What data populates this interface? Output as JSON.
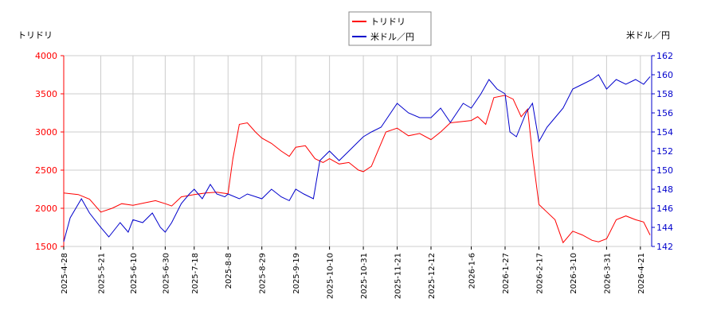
{
  "chart_data": {
    "type": "line",
    "left_axis_label": "トリドリ",
    "right_axis_label": "米ドル／円",
    "left_ylim": [
      1500,
      4000
    ],
    "right_ylim": [
      142,
      162
    ],
    "left_ticks": [
      1500,
      2000,
      2500,
      3000,
      3500,
      4000
    ],
    "right_ticks": [
      142,
      144,
      146,
      148,
      150,
      152,
      154,
      156,
      158,
      160,
      162
    ],
    "x_ticks": [
      "2025-4-28",
      "2025-5-21",
      "2025-6-10",
      "2025-6-30",
      "2025-7-18",
      "2025-8-8",
      "2025-8-29",
      "2025-9-19",
      "2025-10-10",
      "2025-10-31",
      "2025-11-21",
      "2025-12-12",
      "2026-1-6",
      "2026-1-27",
      "2026-2-17",
      "2026-3-10",
      "2026-3-31",
      "2026-4-21"
    ],
    "grid": true,
    "legend_position": "top-center",
    "series": [
      {
        "name": "トリドリ",
        "axis": "left",
        "color": "#ff0000",
        "values": [
          [
            "2025-4-28",
            2200
          ],
          [
            "2025-5-7",
            2180
          ],
          [
            "2025-5-14",
            2120
          ],
          [
            "2025-5-21",
            1950
          ],
          [
            "2025-5-28",
            2000
          ],
          [
            "2025-6-3",
            2060
          ],
          [
            "2025-6-10",
            2040
          ],
          [
            "2025-6-17",
            2070
          ],
          [
            "2025-6-24",
            2100
          ],
          [
            "2025-6-30",
            2060
          ],
          [
            "2025-7-4",
            2030
          ],
          [
            "2025-7-10",
            2150
          ],
          [
            "2025-7-18",
            2180
          ],
          [
            "2025-7-25",
            2200
          ],
          [
            "2025-8-1",
            2210
          ],
          [
            "2025-8-8",
            2190
          ],
          [
            "2025-8-11",
            2650
          ],
          [
            "2025-8-15",
            3100
          ],
          [
            "2025-8-20",
            3120
          ],
          [
            "2025-8-25",
            3000
          ],
          [
            "2025-8-29",
            2920
          ],
          [
            "2025-9-4",
            2850
          ],
          [
            "2025-9-10",
            2750
          ],
          [
            "2025-9-15",
            2680
          ],
          [
            "2025-9-19",
            2800
          ],
          [
            "2025-9-25",
            2820
          ],
          [
            "2025-10-1",
            2650
          ],
          [
            "2025-10-6",
            2600
          ],
          [
            "2025-10-10",
            2650
          ],
          [
            "2025-10-16",
            2580
          ],
          [
            "2025-10-22",
            2600
          ],
          [
            "2025-10-28",
            2500
          ],
          [
            "2025-10-31",
            2480
          ],
          [
            "2025-11-5",
            2550
          ],
          [
            "2025-11-10",
            2800
          ],
          [
            "2025-11-14",
            3000
          ],
          [
            "2025-11-21",
            3050
          ],
          [
            "2025-11-28",
            2950
          ],
          [
            "2025-12-5",
            2980
          ],
          [
            "2025-12-12",
            2900
          ],
          [
            "2025-12-18",
            3000
          ],
          [
            "2025-12-24",
            3120
          ],
          [
            "2026-1-6",
            3150
          ],
          [
            "2026-1-10",
            3200
          ],
          [
            "2026-1-15",
            3100
          ],
          [
            "2026-1-20",
            3450
          ],
          [
            "2026-1-27",
            3480
          ],
          [
            "2026-2-1",
            3430
          ],
          [
            "2026-2-6",
            3200
          ],
          [
            "2026-2-10",
            3300
          ],
          [
            "2026-2-13",
            2700
          ],
          [
            "2026-2-17",
            2050
          ],
          [
            "2026-2-22",
            1950
          ],
          [
            "2026-2-27",
            1850
          ],
          [
            "2026-3-4",
            1550
          ],
          [
            "2026-3-10",
            1700
          ],
          [
            "2026-3-16",
            1650
          ],
          [
            "2026-3-22",
            1580
          ],
          [
            "2026-3-26",
            1560
          ],
          [
            "2026-3-31",
            1600
          ],
          [
            "2026-4-6",
            1850
          ],
          [
            "2026-4-12",
            1900
          ],
          [
            "2026-4-18",
            1850
          ],
          [
            "2026-4-23",
            1820
          ],
          [
            "2026-4-27",
            1650
          ]
        ]
      },
      {
        "name": "米ドル／円",
        "axis": "right",
        "color": "#0000cc",
        "values": [
          [
            "2025-4-28",
            142.5
          ],
          [
            "2025-5-2",
            145.0
          ],
          [
            "2025-5-9",
            147.0
          ],
          [
            "2025-5-14",
            145.5
          ],
          [
            "2025-5-21",
            144.0
          ],
          [
            "2025-5-26",
            143.0
          ],
          [
            "2025-6-2",
            144.5
          ],
          [
            "2025-6-7",
            143.5
          ],
          [
            "2025-6-10",
            144.8
          ],
          [
            "2025-6-16",
            144.5
          ],
          [
            "2025-6-22",
            145.5
          ],
          [
            "2025-6-27",
            144.0
          ],
          [
            "2025-6-30",
            143.5
          ],
          [
            "2025-7-4",
            144.5
          ],
          [
            "2025-7-10",
            146.5
          ],
          [
            "2025-7-15",
            147.5
          ],
          [
            "2025-7-18",
            148.0
          ],
          [
            "2025-7-23",
            147.0
          ],
          [
            "2025-7-28",
            148.5
          ],
          [
            "2025-8-1",
            147.5
          ],
          [
            "2025-8-6",
            147.2
          ],
          [
            "2025-8-8",
            147.5
          ],
          [
            "2025-8-15",
            147.0
          ],
          [
            "2025-8-20",
            147.5
          ],
          [
            "2025-8-29",
            147.0
          ],
          [
            "2025-9-4",
            148.0
          ],
          [
            "2025-9-10",
            147.2
          ],
          [
            "2025-9-15",
            146.8
          ],
          [
            "2025-9-19",
            148.0
          ],
          [
            "2025-9-24",
            147.5
          ],
          [
            "2025-9-30",
            147.0
          ],
          [
            "2025-10-4",
            151.0
          ],
          [
            "2025-10-10",
            152.0
          ],
          [
            "2025-10-16",
            151.0
          ],
          [
            "2025-10-22",
            152.0
          ],
          [
            "2025-10-28",
            153.0
          ],
          [
            "2025-10-31",
            153.5
          ],
          [
            "2025-11-5",
            154.0
          ],
          [
            "2025-11-11",
            154.5
          ],
          [
            "2025-11-15",
            155.5
          ],
          [
            "2025-11-21",
            157.0
          ],
          [
            "2025-11-28",
            156.0
          ],
          [
            "2025-12-5",
            155.5
          ],
          [
            "2025-12-12",
            155.5
          ],
          [
            "2025-12-18",
            156.5
          ],
          [
            "2025-12-24",
            155.0
          ],
          [
            "2026-1-1",
            157.0
          ],
          [
            "2026-1-6",
            156.5
          ],
          [
            "2026-1-12",
            158.0
          ],
          [
            "2026-1-17",
            159.5
          ],
          [
            "2026-1-22",
            158.5
          ],
          [
            "2026-1-27",
            158.0
          ],
          [
            "2026-1-30",
            154.0
          ],
          [
            "2026-2-3",
            153.5
          ],
          [
            "2026-2-9",
            156.0
          ],
          [
            "2026-2-13",
            157.0
          ],
          [
            "2026-2-17",
            153.0
          ],
          [
            "2026-2-22",
            154.5
          ],
          [
            "2026-2-27",
            155.5
          ],
          [
            "2026-3-4",
            156.5
          ],
          [
            "2026-3-10",
            158.5
          ],
          [
            "2026-3-16",
            159.0
          ],
          [
            "2026-3-22",
            159.5
          ],
          [
            "2026-3-26",
            160.0
          ],
          [
            "2026-3-31",
            158.5
          ],
          [
            "2026-4-6",
            159.5
          ],
          [
            "2026-4-12",
            159.0
          ],
          [
            "2026-4-18",
            159.5
          ],
          [
            "2026-4-23",
            159.0
          ],
          [
            "2026-4-27",
            159.8
          ]
        ]
      }
    ]
  }
}
